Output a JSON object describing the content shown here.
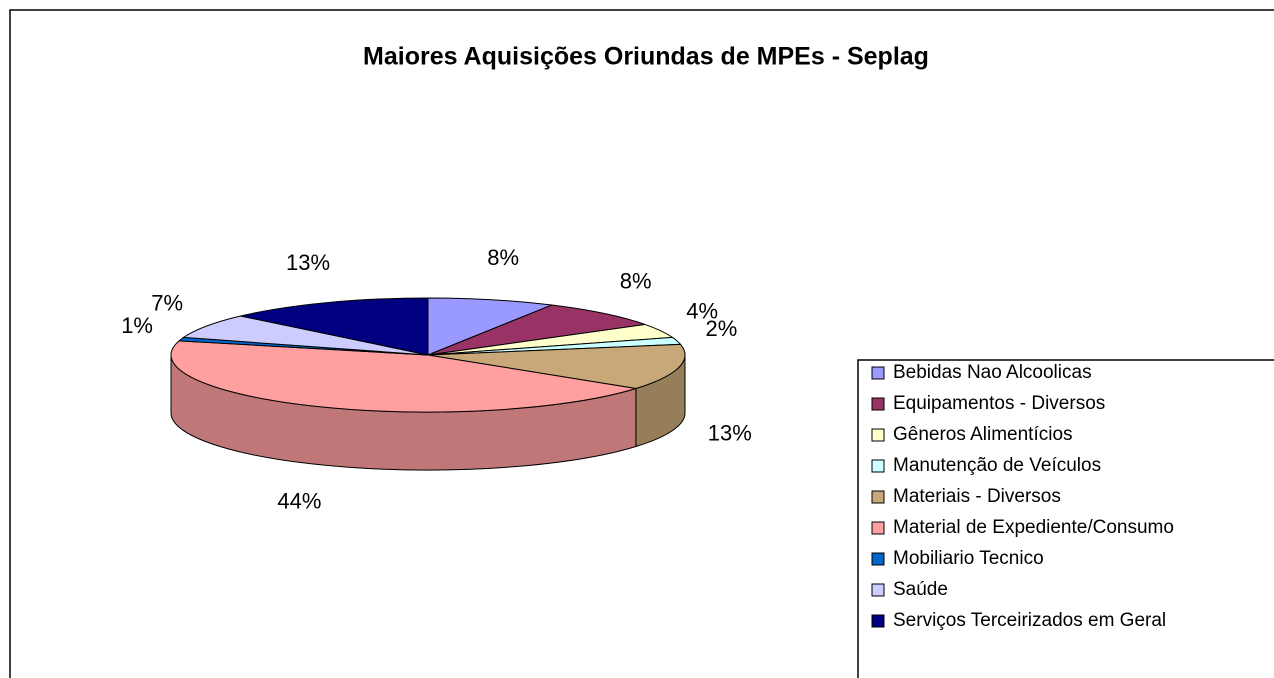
{
  "chart_data": {
    "type": "pie",
    "title": "Maiores Aquisições Oriundas de MPEs - Seplag",
    "categories": [
      "Bebidas Nao Alcoolicas",
      "Equipamentos - Diversos",
      "Gêneros Alimentícios",
      "Manutenção de Veículos",
      "Materiais - Diversos",
      "Material de Expediente/Consumo",
      "Mobiliario Tecnico",
      "Saúde",
      "Serviços Terceirizados em Geral"
    ],
    "values": [
      8,
      8,
      4,
      2,
      13,
      44,
      1,
      7,
      13
    ],
    "value_labels": [
      "8%",
      "8%",
      "4%",
      "2%",
      "13%",
      "44%",
      "1%",
      "7%",
      "13%"
    ],
    "colors": [
      "#9999ff",
      "#993366",
      "#ffffcc",
      "#ccffff",
      "#c8a878",
      "#ff9f9f",
      "#0066cc",
      "#ccccff",
      "#000080"
    ],
    "legend": "right"
  }
}
